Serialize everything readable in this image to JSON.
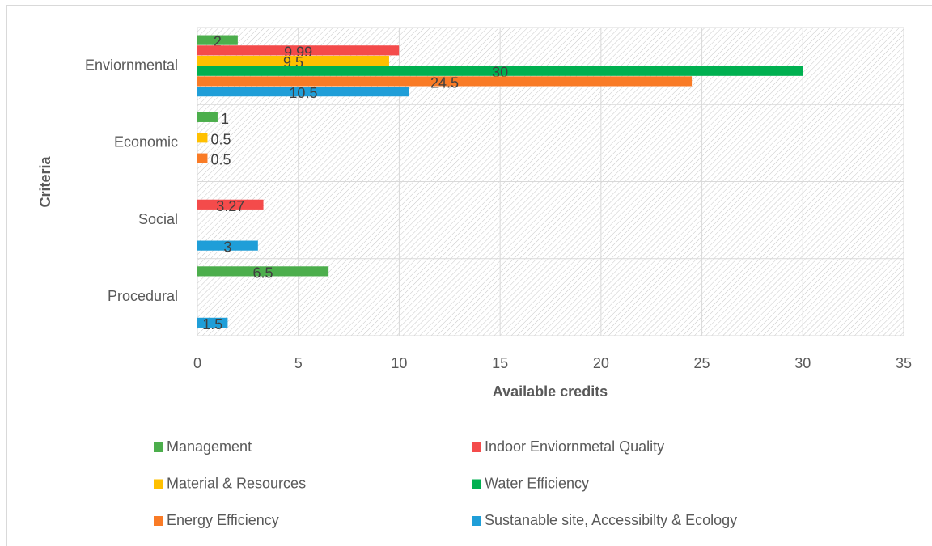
{
  "chart_data": {
    "type": "hbar",
    "x_label": "Available credits",
    "y_label": "Criteria",
    "categories": [
      "Enviornmental",
      "Economic",
      "Social",
      "Procedural"
    ],
    "series": [
      {
        "name": "Management",
        "color": "#4cae4c",
        "values": [
          2,
          1,
          null,
          6.5
        ]
      },
      {
        "name": "Indoor Enviornmetal Quality",
        "color": "#f44b4b",
        "values": [
          9.99,
          null,
          3.27,
          null
        ]
      },
      {
        "name": "Material & Resources",
        "color": "#ffc000",
        "values": [
          9.5,
          0.5,
          null,
          null
        ]
      },
      {
        "name": "Water Efficiency",
        "color": "#00b050",
        "values": [
          30,
          null,
          null,
          null
        ]
      },
      {
        "name": "Energy Efficiency",
        "color": "#f97b26",
        "values": [
          24.5,
          0.5,
          null,
          null
        ]
      },
      {
        "name": "Sustanable site, Accessibilty & Ecology",
        "color": "#1f9ed8",
        "values": [
          10.5,
          null,
          3,
          1.5
        ]
      }
    ],
    "xlim": [
      0,
      35
    ],
    "xticks": [
      0,
      5,
      10,
      15,
      20,
      25,
      30,
      35
    ],
    "grid": true,
    "legend": "bottom"
  }
}
